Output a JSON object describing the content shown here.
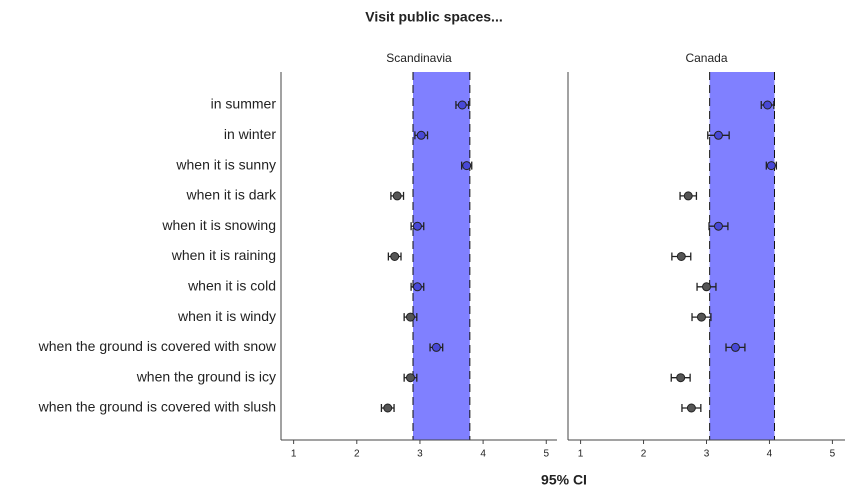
{
  "chart_data": {
    "type": "dot",
    "title": "Visit public spaces...",
    "xlabel": "95% CI",
    "categories": [
      "in summer",
      "in winter",
      "when it is sunny",
      "when it is dark",
      "when it is snowing",
      "when it is raining",
      "when it is cold",
      "when it is windy",
      "when the ground is covered with snow",
      "when the ground is icy",
      "when the ground is covered with slush"
    ],
    "inside_color": "#4848d8",
    "outside_color": "#555555",
    "band_color": "#8080ff",
    "panels": [
      {
        "name": "Scandinavia",
        "xlim": [
          0.8,
          5.17
        ],
        "xticks": [
          1,
          2,
          3,
          4,
          5
        ],
        "band": [
          2.89,
          3.79
        ],
        "values": [
          3.67,
          3.02,
          3.74,
          2.64,
          2.96,
          2.6,
          2.96,
          2.85,
          3.26,
          2.85,
          2.49
        ],
        "errors": [
          0.1,
          0.1,
          0.08,
          0.1,
          0.1,
          0.1,
          0.1,
          0.1,
          0.1,
          0.1,
          0.1
        ]
      },
      {
        "name": "Canada",
        "xlim": [
          0.8,
          5.2
        ],
        "xticks": [
          1,
          2,
          3,
          4,
          5
        ],
        "band": [
          3.05,
          4.08
        ],
        "values": [
          3.97,
          3.19,
          4.03,
          2.71,
          3.19,
          2.6,
          3.0,
          2.92,
          3.46,
          2.59,
          2.76
        ],
        "errors": [
          0.1,
          0.17,
          0.08,
          0.13,
          0.15,
          0.15,
          0.15,
          0.15,
          0.15,
          0.15,
          0.15
        ]
      }
    ]
  }
}
